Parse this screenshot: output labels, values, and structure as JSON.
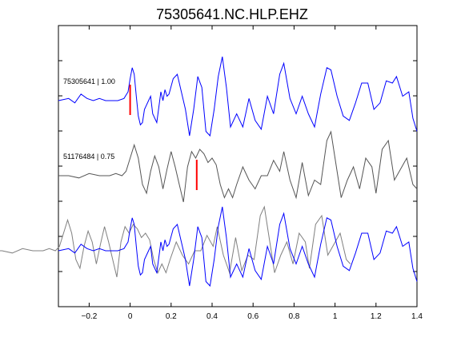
{
  "chart_data": {
    "type": "line",
    "title": "75305641.NC.HLP.EHZ",
    "xlabel": "",
    "ylabel": "",
    "xlim": [
      -0.35,
      1.4
    ],
    "x_ticks": [
      -0.2,
      0,
      0.2,
      0.4,
      0.6,
      0.8,
      1,
      1.2,
      1.4
    ],
    "x_tick_labels": [
      "−0.2",
      "0",
      "0.2",
      "0.4",
      "0.6",
      "0.8",
      "1",
      "1.2",
      "1.4"
    ],
    "y_tick_count": 7,
    "grid": false,
    "colors": {
      "primary": "#0000ff",
      "secondary": "#555555",
      "overlay_secondary": "#808080",
      "pick": "#ff0000"
    },
    "traces": [
      {
        "label": "75305641 | 1.00",
        "color": "#0000ff",
        "pick_time": 0.0,
        "x": [
          -0.35,
          -0.3,
          -0.27,
          -0.24,
          -0.21,
          -0.18,
          -0.15,
          -0.12,
          -0.09,
          -0.06,
          -0.03,
          -0.01,
          0.0,
          0.01,
          0.02,
          0.03,
          0.04,
          0.05,
          0.06,
          0.07,
          0.09,
          0.1,
          0.11,
          0.13,
          0.15,
          0.16,
          0.17,
          0.18,
          0.19,
          0.21,
          0.23,
          0.25,
          0.27,
          0.29,
          0.31,
          0.33,
          0.35,
          0.37,
          0.39,
          0.41,
          0.43,
          0.45,
          0.47,
          0.49,
          0.52,
          0.55,
          0.58,
          0.61,
          0.64,
          0.67,
          0.7,
          0.73,
          0.75,
          0.78,
          0.81,
          0.84,
          0.87,
          0.9,
          0.93,
          0.96,
          0.98,
          1.01,
          1.04,
          1.07,
          1.1,
          1.13,
          1.16,
          1.19,
          1.22,
          1.25,
          1.28,
          1.3,
          1.33,
          1.36,
          1.38,
          1.4
        ],
        "y": [
          0.0,
          0.05,
          -0.05,
          0.15,
          0.05,
          0.0,
          0.05,
          0.0,
          0.0,
          0.0,
          0.05,
          0.2,
          0.5,
          0.75,
          0.6,
          0.1,
          -0.35,
          -0.55,
          -0.5,
          -0.2,
          0.0,
          0.1,
          -0.3,
          -0.5,
          0.2,
          0.0,
          0.25,
          0.1,
          0.15,
          0.5,
          0.6,
          0.2,
          -0.2,
          -0.8,
          -0.2,
          0.55,
          0.3,
          -0.7,
          -0.8,
          -0.2,
          0.55,
          1.0,
          0.3,
          -0.6,
          -0.3,
          -0.6,
          0.05,
          -0.45,
          -0.65,
          0.1,
          -0.3,
          0.6,
          0.85,
          0.05,
          -0.3,
          0.1,
          -0.3,
          -0.6,
          0.15,
          0.75,
          0.7,
          0.1,
          -0.35,
          -0.45,
          -0.05,
          0.4,
          0.4,
          -0.2,
          -0.05,
          0.45,
          0.4,
          0.55,
          0.1,
          0.2,
          -0.4,
          -0.7
        ]
      },
      {
        "label": "51176484 | 0.75",
        "color": "#555555",
        "pick_time": 0.325,
        "x": [
          -0.35,
          -0.3,
          -0.25,
          -0.2,
          -0.15,
          -0.1,
          -0.07,
          -0.04,
          -0.02,
          0.0,
          0.02,
          0.04,
          0.06,
          0.08,
          0.1,
          0.12,
          0.14,
          0.16,
          0.18,
          0.2,
          0.22,
          0.24,
          0.26,
          0.28,
          0.3,
          0.32,
          0.34,
          0.36,
          0.38,
          0.4,
          0.42,
          0.44,
          0.46,
          0.48,
          0.5,
          0.52,
          0.55,
          0.58,
          0.61,
          0.64,
          0.67,
          0.7,
          0.73,
          0.75,
          0.78,
          0.81,
          0.84,
          0.87,
          0.9,
          0.93,
          0.96,
          0.98,
          1.0,
          1.03,
          1.06,
          1.09,
          1.12,
          1.15,
          1.18,
          1.2,
          1.23,
          1.26,
          1.29,
          1.32,
          1.35,
          1.38,
          1.4
        ],
        "y": [
          0.0,
          0.0,
          -0.05,
          0.05,
          0.0,
          0.0,
          0.05,
          0.0,
          0.1,
          0.4,
          0.7,
          0.4,
          -0.2,
          -0.4,
          0.1,
          0.45,
          0.2,
          -0.3,
          0.15,
          0.55,
          0.2,
          -0.2,
          -0.6,
          0.2,
          0.55,
          0.4,
          0.6,
          0.5,
          0.3,
          0.4,
          0.25,
          -0.2,
          -0.5,
          -0.3,
          -0.5,
          -0.2,
          0.2,
          -0.1,
          -0.3,
          0.0,
          0.0,
          0.35,
          0.1,
          0.55,
          -0.1,
          -0.5,
          0.3,
          -0.45,
          -0.1,
          -0.2,
          0.8,
          1.0,
          0.4,
          -0.5,
          -0.1,
          0.2,
          -0.3,
          0.4,
          0.2,
          -0.4,
          0.6,
          0.8,
          -0.1,
          0.15,
          0.4,
          -0.2,
          -0.3
        ]
      }
    ]
  }
}
